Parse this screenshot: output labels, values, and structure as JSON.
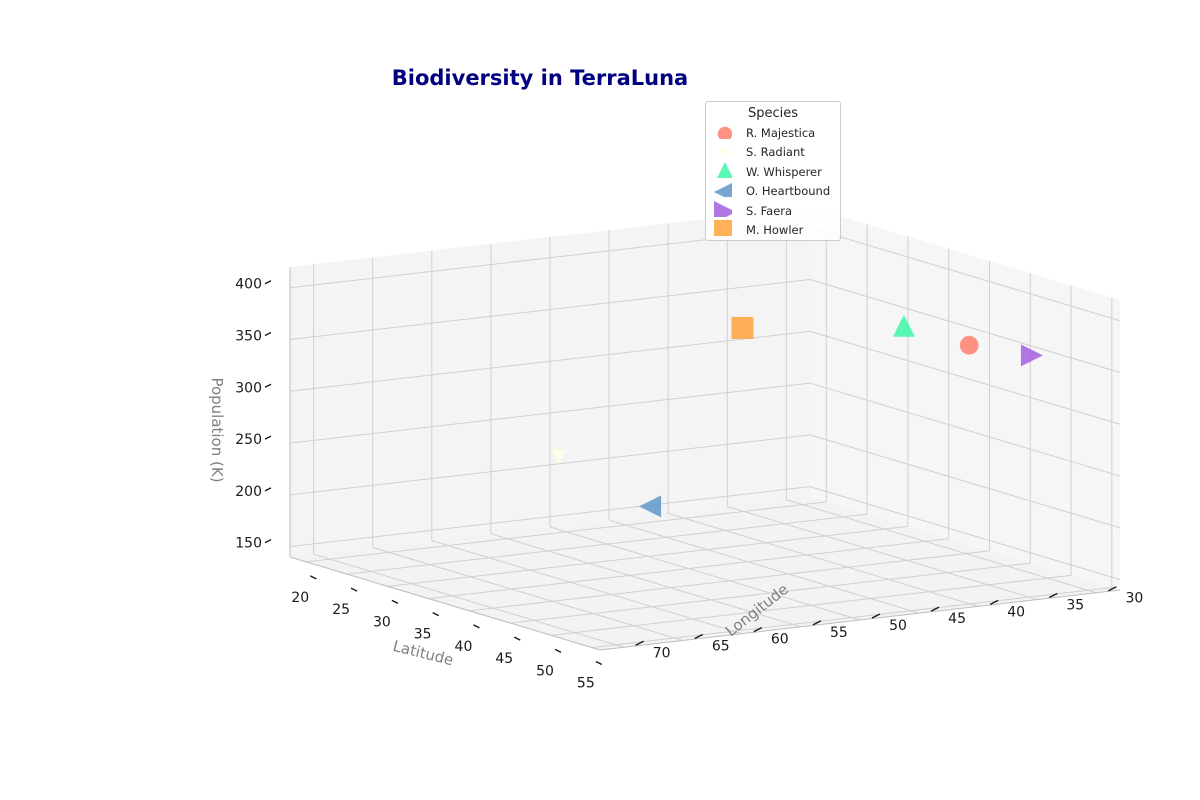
{
  "chart_data": {
    "type": "scatter3d",
    "title": "Biodiversity in TerraLuna",
    "xlabel": "Latitude",
    "ylabel": "Longitude",
    "zlabel": "Population (K)",
    "xlim": [
      18,
      56
    ],
    "ylim": [
      28,
      72
    ],
    "zlim": [
      140,
      420
    ],
    "x_ticks": [
      20,
      25,
      30,
      35,
      40,
      45,
      50,
      55
    ],
    "y_ticks": [
      30,
      35,
      40,
      45,
      50,
      55,
      60,
      65,
      70
    ],
    "z_ticks": [
      150,
      200,
      250,
      300,
      350,
      400
    ],
    "legend_title": "Species",
    "legend_position": "top-right",
    "grid": true,
    "series": [
      {
        "name": "R. Majestica",
        "marker": "circle",
        "color": "#FF7F6E",
        "x": 52,
        "y": 38,
        "z": 380
      },
      {
        "name": "S. Radiant",
        "marker": "triangle-down",
        "color": "#FFFFE0",
        "x": 22,
        "y": 52,
        "z": 220
      },
      {
        "name": "W. Whisperer",
        "marker": "triangle-up",
        "color": "#40F4A8",
        "x": 44,
        "y": 38,
        "z": 380
      },
      {
        "name": "O. Heartbound",
        "marker": "triangle-left",
        "color": "#5F97C8",
        "x": 52,
        "y": 65,
        "z": 260
      },
      {
        "name": "S. Faera",
        "marker": "triangle-right",
        "color": "#A65FE0",
        "x": 51,
        "y": 32,
        "z": 360
      },
      {
        "name": "M. Howler",
        "marker": "square",
        "color": "#FFA23C",
        "x": 30,
        "y": 42,
        "z": 350
      }
    ]
  }
}
